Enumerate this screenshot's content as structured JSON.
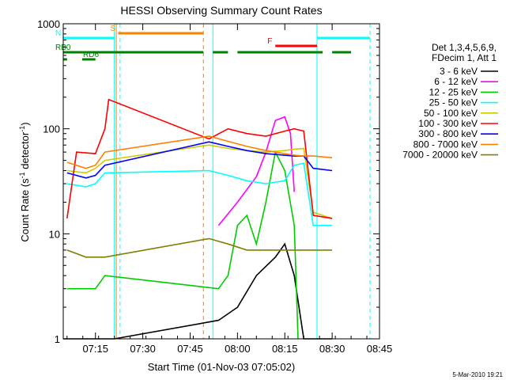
{
  "chart_data": {
    "type": "line",
    "title": "HESSI Observing Summary Count Rates",
    "xlabel": "Start Time (01-Nov-03 07:05:02)",
    "ylabel": "Count Rate (s-1 detector-1)",
    "ylabel_parts": {
      "main": "Count Rate (s",
      "sup1": "-1",
      "mid": " detector",
      "sup2": "-1",
      "end": ")"
    },
    "x_range_minutes": [
      7.08,
      8.75
    ],
    "x_ticks": [
      {
        "label": "07:15",
        "t": 7.25
      },
      {
        "label": "07:30",
        "t": 7.5
      },
      {
        "label": "07:45",
        "t": 7.75
      },
      {
        "label": "08:00",
        "t": 8.0
      },
      {
        "label": "08:15",
        "t": 8.25
      },
      {
        "label": "08:30",
        "t": 8.5
      },
      {
        "label": "08:45",
        "t": 8.75
      }
    ],
    "y_scale": "log",
    "y_range": [
      1,
      1000
    ],
    "y_ticks": [
      {
        "label": "1",
        "v": 1
      },
      {
        "label": "10",
        "v": 10
      },
      {
        "label": "100",
        "v": 100
      },
      {
        "label": "1000",
        "v": 1000
      }
    ],
    "legend": {
      "header": [
        "Det 1,3,4,5,6,9,",
        "FDecim 1, Att 1"
      ],
      "placement": "right"
    },
    "series": [
      {
        "name": "3 - 6 keV",
        "color": "#000000",
        "points": [
          [
            7.08,
            1
          ],
          [
            7.35,
            1
          ],
          [
            7.9,
            1.5
          ],
          [
            8.0,
            2
          ],
          [
            8.1,
            4
          ],
          [
            8.2,
            6
          ],
          [
            8.25,
            8
          ],
          [
            8.3,
            4
          ],
          [
            8.35,
            1
          ],
          [
            8.5,
            1
          ]
        ]
      },
      {
        "name": "6 - 12 keV",
        "color": "#ff00ff",
        "points": [
          [
            7.9,
            12
          ],
          [
            8.0,
            20
          ],
          [
            8.1,
            35
          ],
          [
            8.15,
            60
          ],
          [
            8.2,
            120
          ],
          [
            8.25,
            130
          ],
          [
            8.28,
            90
          ],
          [
            8.3,
            25
          ]
        ]
      },
      {
        "name": "12 - 25 keV",
        "color": "#00cc00",
        "points": [
          [
            7.1,
            3
          ],
          [
            7.25,
            3
          ],
          [
            7.3,
            4
          ],
          [
            7.9,
            3
          ],
          [
            7.95,
            4
          ],
          [
            8.0,
            12
          ],
          [
            8.05,
            15
          ],
          [
            8.1,
            8
          ],
          [
            8.15,
            20
          ],
          [
            8.2,
            60
          ],
          [
            8.25,
            40
          ],
          [
            8.3,
            12
          ],
          [
            8.32,
            1
          ]
        ]
      },
      {
        "name": "25 - 50 keV",
        "color": "#00ffff",
        "points": [
          [
            7.1,
            30
          ],
          [
            7.2,
            28
          ],
          [
            7.25,
            30
          ],
          [
            7.3,
            38
          ],
          [
            7.85,
            40
          ],
          [
            7.95,
            36
          ],
          [
            8.05,
            32
          ],
          [
            8.15,
            30
          ],
          [
            8.25,
            32
          ],
          [
            8.3,
            45
          ],
          [
            8.35,
            47
          ],
          [
            8.4,
            12
          ],
          [
            8.5,
            12
          ]
        ]
      },
      {
        "name": "50 - 100 keV",
        "color": "#cccc00",
        "points": [
          [
            7.1,
            40
          ],
          [
            7.2,
            38
          ],
          [
            7.25,
            42
          ],
          [
            7.3,
            50
          ],
          [
            7.85,
            70
          ],
          [
            7.95,
            65
          ],
          [
            8.05,
            62
          ],
          [
            8.15,
            60
          ],
          [
            8.25,
            62
          ],
          [
            8.3,
            64
          ],
          [
            8.35,
            65
          ],
          [
            8.4,
            16
          ],
          [
            8.5,
            14
          ]
        ]
      },
      {
        "name": "100 - 300 keV",
        "color": "#ff0000",
        "points": [
          [
            7.1,
            14
          ],
          [
            7.15,
            60
          ],
          [
            7.25,
            58
          ],
          [
            7.3,
            100
          ],
          [
            7.32,
            190
          ],
          [
            7.85,
            80
          ],
          [
            7.95,
            100
          ],
          [
            8.05,
            90
          ],
          [
            8.15,
            85
          ],
          [
            8.25,
            95
          ],
          [
            8.3,
            100
          ],
          [
            8.35,
            95
          ],
          [
            8.4,
            15
          ],
          [
            8.5,
            14
          ]
        ]
      },
      {
        "name": "300 - 800 keV",
        "color": "#0000ff",
        "points": [
          [
            7.1,
            38
          ],
          [
            7.2,
            34
          ],
          [
            7.25,
            36
          ],
          [
            7.3,
            45
          ],
          [
            7.85,
            75
          ],
          [
            7.95,
            68
          ],
          [
            8.05,
            62
          ],
          [
            8.15,
            58
          ],
          [
            8.25,
            56
          ],
          [
            8.3,
            55
          ],
          [
            8.35,
            55
          ],
          [
            8.4,
            42
          ],
          [
            8.5,
            40
          ]
        ]
      },
      {
        "name": "800 - 7000 keV",
        "color": "#ff8000",
        "points": [
          [
            7.1,
            48
          ],
          [
            7.2,
            42
          ],
          [
            7.25,
            45
          ],
          [
            7.3,
            60
          ],
          [
            7.85,
            85
          ],
          [
            7.95,
            76
          ],
          [
            8.05,
            68
          ],
          [
            8.15,
            62
          ],
          [
            8.25,
            58
          ],
          [
            8.3,
            56
          ],
          [
            8.35,
            55
          ],
          [
            8.4,
            55
          ],
          [
            8.5,
            53
          ]
        ]
      },
      {
        "name": "7000 - 20000 keV",
        "color": "#808000",
        "points": [
          [
            7.1,
            7
          ],
          [
            7.2,
            6
          ],
          [
            7.25,
            6
          ],
          [
            7.3,
            6
          ],
          [
            7.85,
            9
          ],
          [
            7.95,
            8
          ],
          [
            8.05,
            7
          ],
          [
            8.15,
            7
          ],
          [
            8.25,
            7
          ],
          [
            8.3,
            7
          ],
          [
            8.35,
            7
          ],
          [
            8.4,
            7
          ],
          [
            8.5,
            7
          ]
        ]
      }
    ],
    "flags": [
      {
        "label": "S",
        "color": "#ff8000",
        "segments": [
          [
            7.37,
            7.82
          ]
        ],
        "row": "top"
      },
      {
        "label": "N",
        "color": "#00ffff",
        "segments": [
          [
            7.08,
            7.35
          ],
          [
            8.42,
            8.7
          ]
        ],
        "row": "second"
      },
      {
        "label": "F",
        "color": "#ff0000",
        "segments": [
          [
            8.2,
            8.42
          ]
        ],
        "row": "third"
      },
      {
        "label": "RB0",
        "color": "#008000",
        "segments": [
          [
            7.08,
            7.82
          ],
          [
            7.87,
            7.95
          ],
          [
            8.0,
            8.45
          ],
          [
            8.5,
            8.6
          ]
        ],
        "row": "fourth"
      },
      {
        "label": "RD6",
        "color": "#008000",
        "segments": [
          [
            7.08,
            7.1
          ],
          [
            7.18,
            7.25
          ]
        ],
        "row": "fifth"
      }
    ],
    "vertical_markers": [
      {
        "t": 7.35,
        "color": "#00ffff",
        "style": "solid"
      },
      {
        "t": 7.36,
        "color": "#ff8000",
        "style": "solid"
      },
      {
        "t": 7.38,
        "color": "#00ffff",
        "style": "dashed"
      },
      {
        "t": 7.82,
        "color": "#ff8000",
        "style": "dashed"
      },
      {
        "t": 7.87,
        "color": "#00ffff",
        "style": "solid"
      },
      {
        "t": 8.42,
        "color": "#00ffff",
        "style": "solid"
      },
      {
        "t": 8.7,
        "color": "#00ffff",
        "style": "dashed"
      }
    ],
    "footer_date": "5-Mar-2010 19:21"
  }
}
